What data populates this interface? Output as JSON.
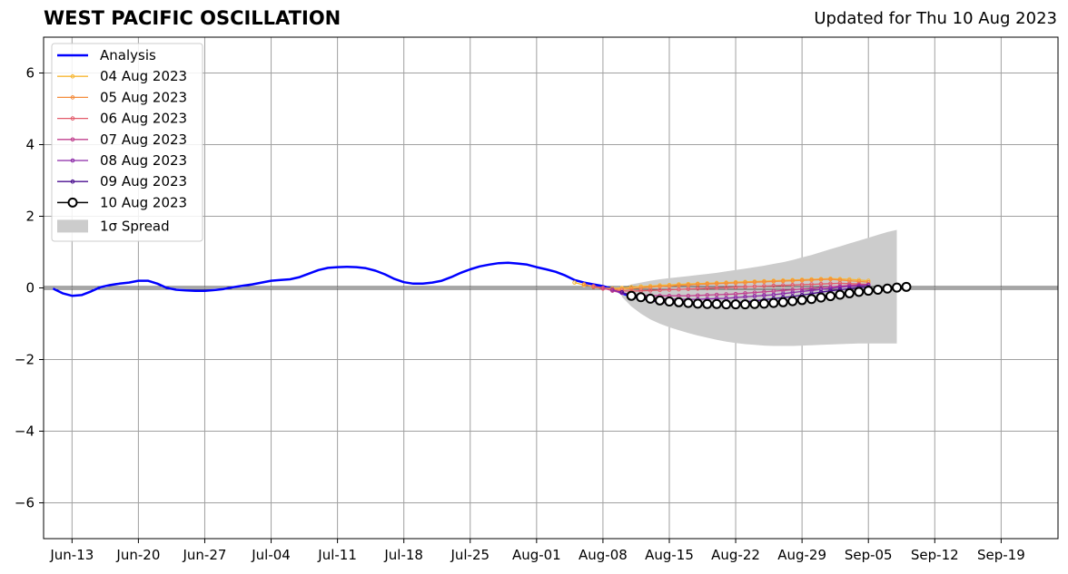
{
  "header": {
    "title": "WEST PACIFIC OSCILLATION",
    "updated": "Updated for Thu 10 Aug 2023"
  },
  "chart_data": {
    "type": "line",
    "title": "WEST PACIFIC OSCILLATION",
    "xlabel": "",
    "ylabel": "",
    "x_axis_type": "date",
    "xlim": [
      "2023-06-10",
      "2023-09-25"
    ],
    "ylim": [
      -7,
      7
    ],
    "grid": true,
    "legend_position": "upper-left",
    "x_tick_labels": [
      "Jun-13",
      "Jun-20",
      "Jun-27",
      "Jul-04",
      "Jul-11",
      "Jul-18",
      "Jul-25",
      "Aug-01",
      "Aug-08",
      "Aug-15",
      "Aug-22",
      "Aug-29",
      "Sep-05",
      "Sep-12",
      "Sep-19"
    ],
    "x_tick_dates": [
      "2023-06-13",
      "2023-06-20",
      "2023-06-27",
      "2023-07-04",
      "2023-07-11",
      "2023-07-18",
      "2023-07-25",
      "2023-08-01",
      "2023-08-08",
      "2023-08-15",
      "2023-08-22",
      "2023-08-29",
      "2023-09-05",
      "2023-09-12",
      "2023-09-19"
    ],
    "y_ticks": [
      -6,
      -4,
      -2,
      0,
      2,
      4,
      6
    ],
    "y_tick_labels": [
      "−6",
      "−4",
      "−2",
      "0",
      "2",
      "4",
      "6"
    ],
    "analysis": {
      "name": "Analysis",
      "color": "#0000ff",
      "start": "2023-06-11",
      "values": [
        -0.02,
        -0.15,
        -0.22,
        -0.2,
        -0.1,
        0.02,
        0.08,
        0.12,
        0.15,
        0.2,
        0.2,
        0.12,
        0.0,
        -0.05,
        -0.07,
        -0.08,
        -0.08,
        -0.06,
        -0.03,
        0.02,
        0.06,
        0.1,
        0.15,
        0.2,
        0.22,
        0.24,
        0.3,
        0.4,
        0.5,
        0.56,
        0.58,
        0.59,
        0.58,
        0.55,
        0.48,
        0.38,
        0.25,
        0.16,
        0.12,
        0.12,
        0.15,
        0.2,
        0.3,
        0.42,
        0.52,
        0.6,
        0.65,
        0.69,
        0.7,
        0.68,
        0.65,
        0.58,
        0.52,
        0.45,
        0.35,
        0.22,
        0.15,
        0.1,
        0.05,
        -0.03,
        -0.15,
        -0.24,
        -0.28
      ]
    },
    "spread": {
      "name": "1σ Spread",
      "color": "#cccccc",
      "start": "2023-08-10",
      "upper": [
        0.0,
        0.1,
        0.15,
        0.2,
        0.24,
        0.27,
        0.3,
        0.33,
        0.36,
        0.39,
        0.42,
        0.46,
        0.5,
        0.54,
        0.58,
        0.62,
        0.67,
        0.72,
        0.78,
        0.85,
        0.92,
        1.0,
        1.08,
        1.16,
        1.24,
        1.32,
        1.4,
        1.48,
        1.56,
        1.62
      ],
      "lower": [
        -0.25,
        -0.52,
        -0.72,
        -0.88,
        -1.0,
        -1.1,
        -1.18,
        -1.26,
        -1.33,
        -1.39,
        -1.45,
        -1.5,
        -1.54,
        -1.57,
        -1.59,
        -1.61,
        -1.62,
        -1.62,
        -1.62,
        -1.61,
        -1.6,
        -1.59,
        -1.58,
        -1.57,
        -1.56,
        -1.55,
        -1.55,
        -1.55,
        -1.55,
        -1.55
      ]
    },
    "series": [
      {
        "name": "04 Aug 2023",
        "color": "#f7b733",
        "start": "2023-08-05",
        "values": [
          0.15,
          0.08,
          0.04,
          0.0,
          -0.02,
          0.0,
          0.02,
          0.04,
          0.05,
          0.07,
          0.08,
          0.1,
          0.11,
          0.12,
          0.13,
          0.14,
          0.15,
          0.16,
          0.17,
          0.18,
          0.19,
          0.2,
          0.21,
          0.22,
          0.23,
          0.24,
          0.25,
          0.26,
          0.25,
          0.24,
          0.22,
          0.2
        ]
      },
      {
        "name": "05 Aug 2023",
        "color": "#f48c3c",
        "start": "2023-08-06",
        "values": [
          0.1,
          0.03,
          -0.02,
          -0.04,
          -0.04,
          -0.02,
          0.0,
          0.02,
          0.04,
          0.05,
          0.07,
          0.08,
          0.1,
          0.11,
          0.12,
          0.13,
          0.14,
          0.15,
          0.16,
          0.17,
          0.18,
          0.19,
          0.2,
          0.21,
          0.22,
          0.23,
          0.24,
          0.22,
          0.2,
          0.18,
          0.16
        ]
      },
      {
        "name": "06 Aug 2023",
        "color": "#e35b6b",
        "start": "2023-08-07",
        "values": [
          0.05,
          -0.02,
          -0.06,
          -0.08,
          -0.09,
          -0.08,
          -0.07,
          -0.06,
          -0.05,
          -0.04,
          -0.03,
          -0.02,
          -0.01,
          0.0,
          0.01,
          0.02,
          0.03,
          0.04,
          0.05,
          0.06,
          0.07,
          0.08,
          0.09,
          0.1,
          0.11,
          0.12,
          0.13,
          0.12,
          0.11,
          0.1
        ]
      },
      {
        "name": "07 Aug 2023",
        "color": "#c1408f",
        "start": "2023-08-08",
        "values": [
          0.0,
          -0.08,
          -0.14,
          -0.18,
          -0.2,
          -0.21,
          -0.22,
          -0.22,
          -0.22,
          -0.22,
          -0.21,
          -0.2,
          -0.19,
          -0.18,
          -0.17,
          -0.15,
          -0.13,
          -0.11,
          -0.09,
          -0.07,
          -0.05,
          -0.03,
          -0.01,
          0.01,
          0.03,
          0.05,
          0.07,
          0.08,
          0.09
        ]
      },
      {
        "name": "08 Aug 2023",
        "color": "#8b27a8",
        "start": "2023-08-09",
        "values": [
          -0.05,
          -0.14,
          -0.2,
          -0.25,
          -0.28,
          -0.3,
          -0.31,
          -0.32,
          -0.32,
          -0.32,
          -0.31,
          -0.3,
          -0.29,
          -0.27,
          -0.25,
          -0.23,
          -0.21,
          -0.19,
          -0.16,
          -0.13,
          -0.1,
          -0.07,
          -0.04,
          -0.01,
          0.02,
          0.04,
          0.06,
          0.08
        ]
      },
      {
        "name": "09 Aug 2023",
        "color": "#4a0e8f",
        "start": "2023-08-10",
        "values": [
          -0.12,
          -0.22,
          -0.3,
          -0.36,
          -0.4,
          -0.43,
          -0.44,
          -0.45,
          -0.45,
          -0.45,
          -0.44,
          -0.43,
          -0.41,
          -0.39,
          -0.36,
          -0.33,
          -0.3,
          -0.27,
          -0.24,
          -0.2,
          -0.16,
          -0.12,
          -0.08,
          -0.05,
          -0.02,
          0.01,
          0.03
        ]
      }
    ],
    "forecast": {
      "name": "10 Aug 2023",
      "color": "#000000",
      "start": "2023-08-11",
      "values": [
        -0.22,
        -0.26,
        -0.3,
        -0.35,
        -0.38,
        -0.4,
        -0.42,
        -0.44,
        -0.45,
        -0.45,
        -0.46,
        -0.46,
        -0.46,
        -0.45,
        -0.44,
        -0.42,
        -0.4,
        -0.37,
        -0.34,
        -0.31,
        -0.27,
        -0.23,
        -0.19,
        -0.15,
        -0.11,
        -0.08,
        -0.05,
        -0.02,
        0.01,
        0.03
      ]
    }
  }
}
